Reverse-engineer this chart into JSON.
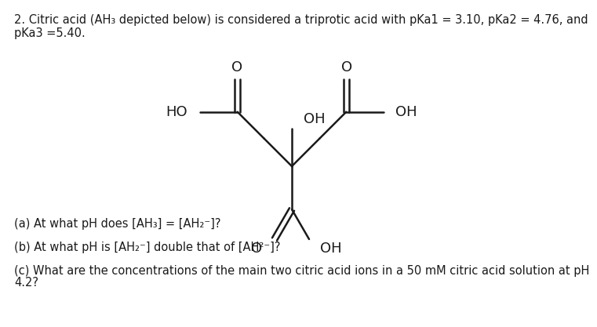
{
  "title_line1": "2. Citric acid (AH₃ depicted below) is considered a triprotic acid with pKa1 = 3.10, pKa2 = 4.76, and",
  "title_line2": "pKa3 =5.40.",
  "question_a": "(a) At what pH does [AH₃] = [AH₂⁻]?",
  "question_b": "(b) At what pH is [AH₂⁻] double that of [AH²⁻]?",
  "question_c1": "(c) What are the concentrations of the main two citric acid ions in a 50 mM citric acid solution at pH",
  "question_c2": "4.2?",
  "bg_color": "#ffffff",
  "text_color": "#1a1a1a",
  "font_size": 10.5,
  "struct_font_size": 13
}
